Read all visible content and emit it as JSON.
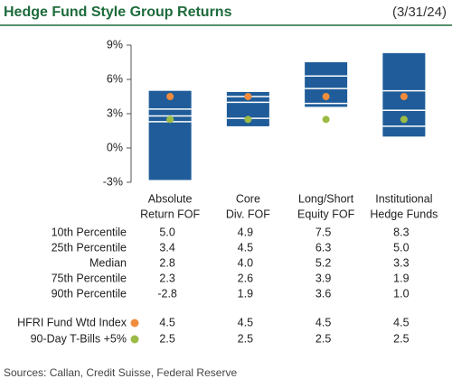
{
  "chart_data": {
    "type": "range_bar",
    "title": "Hedge Fund Style Group Returns",
    "date": "(3/31/24)",
    "source": "Sources: Callan, Credit Suisse, Federal Reserve",
    "categories": [
      [
        "Absolute",
        "Return FOF"
      ],
      [
        "Core",
        "Div. FOF"
      ],
      [
        "Long/Short",
        "Equity FOF"
      ],
      [
        "Institutional",
        "Hedge Funds"
      ]
    ],
    "ylim": [
      -3,
      9
    ],
    "yticks": [
      {
        "value": -3,
        "label": "-3%"
      },
      {
        "value": 0,
        "label": "0%"
      },
      {
        "value": 3,
        "label": "3%"
      },
      {
        "value": 6,
        "label": "6%"
      },
      {
        "value": 9,
        "label": "9%"
      }
    ],
    "bar_color": "#1f5c99",
    "series": [
      {
        "name": "10th Percentile",
        "values": [
          5.0,
          4.9,
          7.5,
          8.3
        ],
        "value_labels": [
          "5.0",
          "4.9",
          "7.5",
          "8.3"
        ]
      },
      {
        "name": "25th Percentile",
        "values": [
          3.4,
          4.5,
          6.3,
          5.0
        ],
        "value_labels": [
          "3.4",
          "4.5",
          "6.3",
          "5.0"
        ]
      },
      {
        "name": "Median",
        "values": [
          2.8,
          4.0,
          5.2,
          3.3
        ],
        "value_labels": [
          "2.8",
          "4.0",
          "5.2",
          "3.3"
        ]
      },
      {
        "name": "75th Percentile",
        "values": [
          2.3,
          2.6,
          3.9,
          1.9
        ],
        "value_labels": [
          "2.3",
          "2.6",
          "3.9",
          "1.9"
        ]
      },
      {
        "name": "90th Percentile",
        "values": [
          -2.8,
          1.9,
          3.6,
          1.0
        ],
        "value_labels": [
          "-2.8",
          "1.9",
          "3.6",
          "1.0"
        ]
      }
    ],
    "markers": [
      {
        "name": "HFRI Fund Wtd Index",
        "color": "#f08c3c",
        "values": [
          4.5,
          4.5,
          4.5,
          4.5
        ],
        "value_labels": [
          "4.5",
          "4.5",
          "4.5",
          "4.5"
        ]
      },
      {
        "name": "90-Day T-Bills +5%",
        "color": "#9bbb45",
        "values": [
          2.5,
          2.5,
          2.5,
          2.5
        ],
        "value_labels": [
          "2.5",
          "2.5",
          "2.5",
          "2.5"
        ]
      }
    ]
  }
}
